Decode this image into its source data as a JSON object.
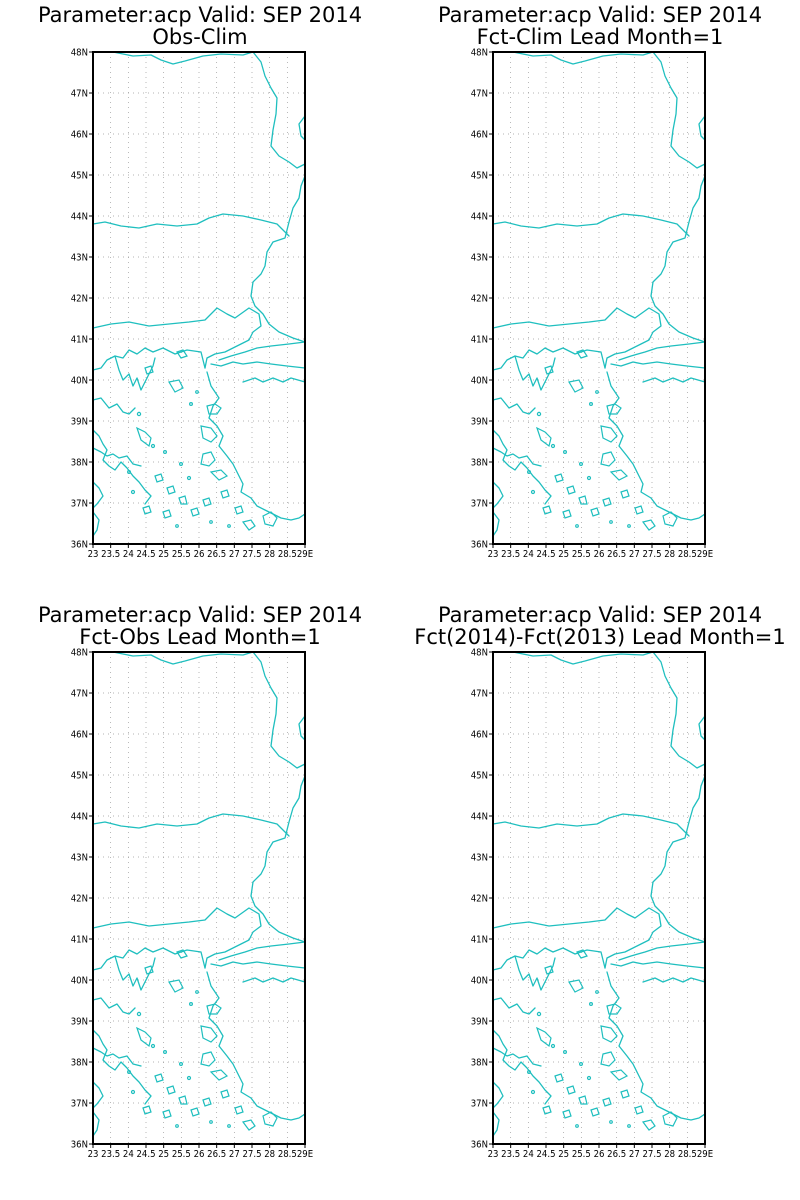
{
  "panels": [
    {
      "title_line1": "Parameter:acp Valid: SEP 2014",
      "title_line2": "Obs-Clim"
    },
    {
      "title_line1": "Parameter:acp Valid: SEP 2014",
      "title_line2": "Fct-Clim Lead Month=1"
    },
    {
      "title_line1": "Parameter:acp Valid: SEP 2014",
      "title_line2": "Fct-Obs Lead Month=1"
    },
    {
      "title_line1": "Parameter:acp Valid: SEP 2014",
      "title_line2": "Fct(2014)-Fct(2013) Lead Month=1"
    }
  ],
  "map": {
    "lat_labels": [
      "36N",
      "37N",
      "38N",
      "39N",
      "40N",
      "41N",
      "42N",
      "43N",
      "44N",
      "45N",
      "46N",
      "47N",
      "48N"
    ],
    "lon_labels": [
      "23",
      "23.5",
      "24",
      "24.5",
      "25",
      "25.5",
      "26",
      "26.5",
      "27",
      "27.5",
      "28",
      "28.5",
      "29E"
    ],
    "coastline_color": "#1fbfbf",
    "grid_color": "#9a9a9a",
    "frame_color": "#000000"
  }
}
